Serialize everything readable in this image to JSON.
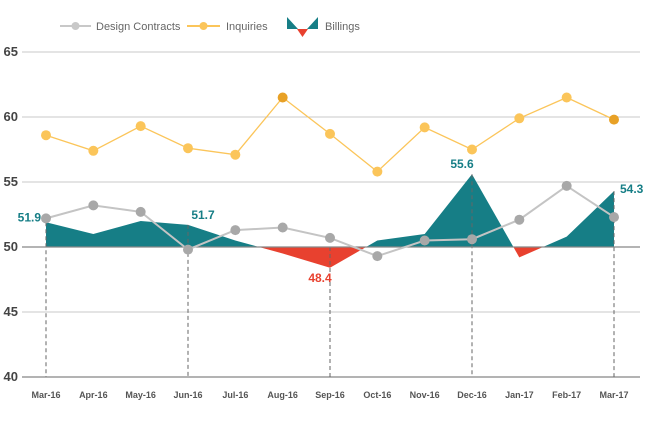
{
  "chart_data": {
    "type": "line",
    "title": "",
    "xlabel": "",
    "ylabel": "",
    "ylim": [
      40,
      65
    ],
    "yticks": [
      40,
      45,
      50,
      55,
      60,
      65
    ],
    "baseline": 50,
    "grid": true,
    "legend_position": "top",
    "categories": [
      "Mar-16",
      "Apr-16",
      "May-16",
      "Jun-16",
      "Jul-16",
      "Aug-16",
      "Sep-16",
      "Oct-16",
      "Nov-16",
      "Dec-16",
      "Jan-17",
      "Feb-17",
      "Mar-17"
    ],
    "series": [
      {
        "name": "Design Contracts",
        "kind": "line",
        "color": "#c4c4c4",
        "marker_color": "#a8a8a8",
        "values": [
          52.2,
          53.2,
          52.7,
          49.8,
          51.3,
          51.5,
          50.7,
          49.3,
          50.5,
          50.6,
          52.1,
          54.7,
          52.3
        ]
      },
      {
        "name": "Inquiries",
        "kind": "line",
        "color": "#fbc55a",
        "marker_color": "#fbc55a",
        "highlight_color": "#e8a126",
        "highlight_indices": [
          5,
          12
        ],
        "values": [
          58.6,
          57.4,
          59.3,
          57.6,
          57.1,
          61.5,
          58.7,
          55.8,
          59.2,
          57.5,
          59.9,
          61.5,
          59.8
        ]
      },
      {
        "name": "Billings",
        "kind": "area-diverging",
        "color_above": "#167e86",
        "color_below": "#e8412f",
        "values": [
          51.9,
          51.0,
          52.0,
          51.7,
          50.5,
          49.5,
          48.4,
          50.5,
          51.0,
          55.6,
          49.2,
          50.8,
          54.3
        ]
      }
    ],
    "annotations": [
      {
        "index": 0,
        "series": "Billings",
        "text": "51.9",
        "color": "#167e86",
        "anchor": "left"
      },
      {
        "index": 3,
        "series": "Billings",
        "text": "51.7",
        "color": "#167e86",
        "anchor": "above"
      },
      {
        "index": 6,
        "series": "Billings",
        "text": "48.4",
        "color": "#e8412f",
        "anchor": "below"
      },
      {
        "index": 9,
        "series": "Billings",
        "text": "55.6",
        "color": "#167e86",
        "anchor": "above"
      },
      {
        "index": 12,
        "series": "Billings",
        "text": "54.3",
        "color": "#167e86",
        "anchor": "right"
      }
    ],
    "dashed_guides_at": [
      0,
      3,
      6,
      9,
      12
    ]
  },
  "legend": {
    "items": [
      {
        "label": "Design Contracts",
        "icon": "gray-line-dot-icon"
      },
      {
        "label": "Inquiries",
        "icon": "yellow-line-dot-icon"
      },
      {
        "label": "Billings",
        "icon": "billings-area-icon"
      }
    ]
  }
}
